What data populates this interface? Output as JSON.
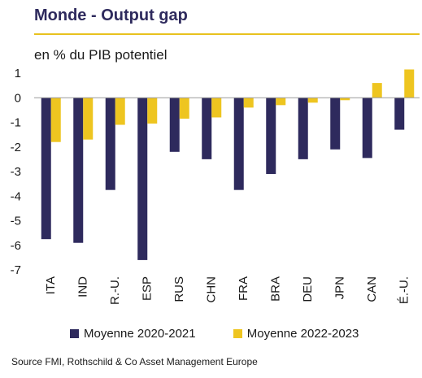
{
  "title": "Monde - Output gap",
  "subtitle": "en % du PIB potentiel",
  "source": "Source FMI, Rothschild & Co Asset Management Europe",
  "colors": {
    "series1": "#2e2a5d",
    "series2": "#eec520",
    "title": "#2e2a5d",
    "rule": "#e8c21e"
  },
  "chart_data": {
    "type": "bar",
    "categories": [
      "ITA",
      "IND",
      "R.-U.",
      "ESP",
      "RUS",
      "CHN",
      "FRA",
      "BRA",
      "DEU",
      "JPN",
      "CAN",
      "É.-U."
    ],
    "series": [
      {
        "name": "Moyenne 2020-2021",
        "values": [
          -5.75,
          -5.9,
          -3.75,
          -6.6,
          -2.2,
          -2.5,
          -3.75,
          -3.1,
          -2.5,
          -2.1,
          -2.45,
          -1.3
        ]
      },
      {
        "name": "Moyenne 2022-2023",
        "values": [
          -1.8,
          -1.7,
          -1.1,
          -1.05,
          -0.85,
          -0.8,
          -0.4,
          -0.3,
          -0.2,
          -0.1,
          0.6,
          1.15
        ]
      }
    ],
    "ylim": [
      -7,
      1
    ],
    "yticks": [
      1,
      0,
      -1,
      -2,
      -3,
      -4,
      -5,
      -6,
      -7
    ],
    "xlabel": "",
    "ylabel": "",
    "grid": false,
    "legend": "bottom"
  }
}
